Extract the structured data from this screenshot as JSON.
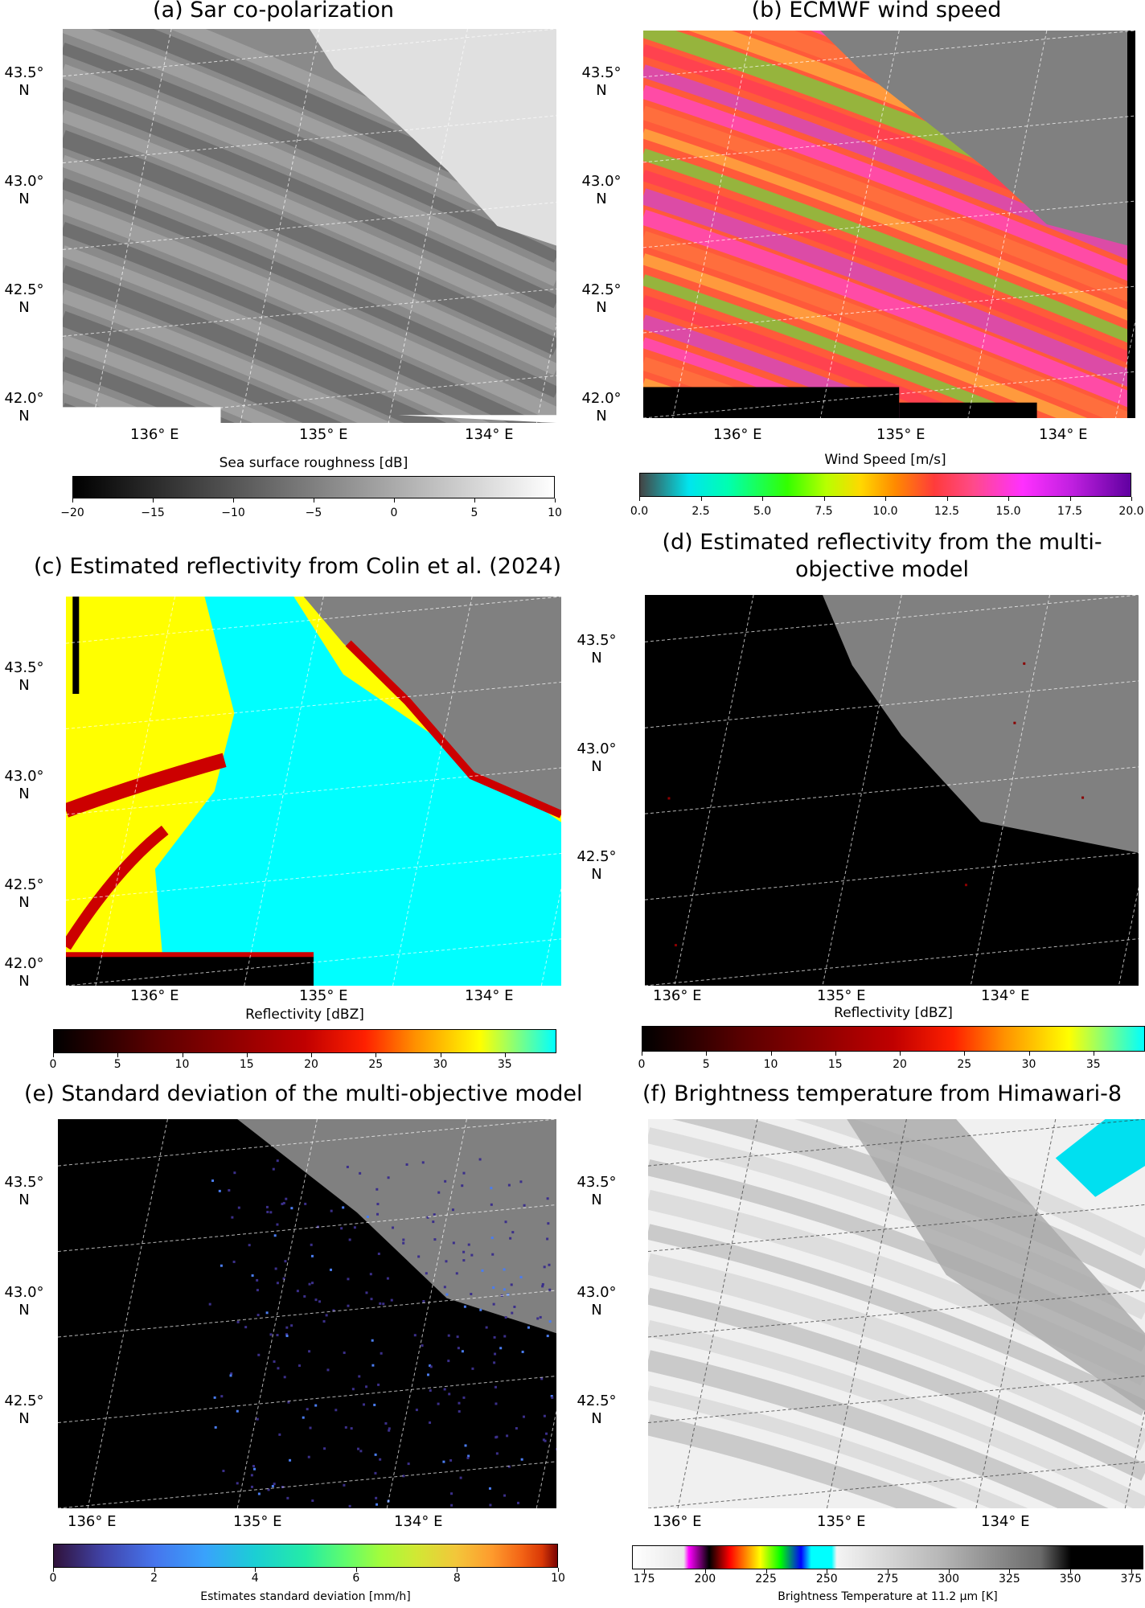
{
  "chart_data": [
    {
      "type": "heatmap",
      "title": "(a) Sar co-polarization",
      "lat_labels": [
        {
          "v": "43.5°",
          "u": "N"
        },
        {
          "v": "43.0°",
          "u": "N"
        },
        {
          "v": "42.5°",
          "u": "N"
        },
        {
          "v": "42.0°",
          "u": "N"
        }
      ],
      "lon_labels": [
        "136° E",
        "135° E",
        "134° E"
      ],
      "colorbar": {
        "label": "Sea surface roughness [dB]",
        "min": -20,
        "max": 10,
        "ticks": [
          "−20",
          "−15",
          "−10",
          "−5",
          "0",
          "5",
          "10"
        ],
        "colormap": "gray"
      }
    },
    {
      "type": "heatmap",
      "title": "(b) ECMWF wind speed",
      "lat_labels": [
        {
          "v": "43.5°",
          "u": "N"
        },
        {
          "v": "43.0°",
          "u": "N"
        },
        {
          "v": "42.5°",
          "u": "N"
        },
        {
          "v": "42.0°",
          "u": "N"
        }
      ],
      "lon_labels": [
        "136° E",
        "135° E",
        "134° E"
      ],
      "colorbar": {
        "label": "Wind Speed [m/s]",
        "min": 0,
        "max": 20,
        "ticks": [
          "0.0",
          "2.5",
          "5.0",
          "7.5",
          "10.0",
          "12.5",
          "15.0",
          "17.5",
          "20.0"
        ],
        "colormap": "wind"
      }
    },
    {
      "type": "heatmap",
      "title": "(c) Estimated reflectivity from Colin et al. (2024)",
      "lat_labels": [
        {
          "v": "43.5°",
          "u": "N"
        },
        {
          "v": "43.0°",
          "u": "N"
        },
        {
          "v": "42.5°",
          "u": "N"
        },
        {
          "v": "42.0°",
          "u": "N"
        }
      ],
      "lon_labels": [
        "136° E",
        "135° E",
        "134° E"
      ],
      "colorbar": {
        "label": "Reflectivity [dBZ]",
        "min": 0,
        "max": 39,
        "ticks": [
          "0",
          "5",
          "10",
          "15",
          "20",
          "25",
          "30",
          "35"
        ],
        "colormap": "refl"
      }
    },
    {
      "type": "heatmap",
      "title": "(d) Estimated reflectivity from the multi-objective model",
      "lat_labels": [
        {
          "v": "43.5°",
          "u": "N"
        },
        {
          "v": "43.0°",
          "u": "N"
        },
        {
          "v": "42.5°",
          "u": "N"
        }
      ],
      "lon_labels": [
        "136° E",
        "135° E",
        "134° E"
      ],
      "colorbar": {
        "label": "Reflectivity [dBZ]",
        "min": 0,
        "max": 39,
        "ticks": [
          "0",
          "5",
          "10",
          "15",
          "20",
          "25",
          "30",
          "35"
        ],
        "colormap": "refl"
      }
    },
    {
      "type": "heatmap",
      "title": "(e) Standard deviation of the multi-objective model",
      "lat_labels": [
        {
          "v": "43.5°",
          "u": "N"
        },
        {
          "v": "43.0°",
          "u": "N"
        },
        {
          "v": "42.5°",
          "u": "N"
        }
      ],
      "lon_labels": [
        "136° E",
        "135° E",
        "134° E"
      ],
      "colorbar": {
        "label": "Estimates standard deviation [mm/h]",
        "min": 0,
        "max": 10,
        "ticks": [
          "0",
          "2",
          "4",
          "6",
          "8",
          "10"
        ],
        "colormap": "turbo"
      }
    },
    {
      "type": "heatmap",
      "title": "(f) Brightness temperature from Himawari-8",
      "lat_labels": [
        {
          "v": "43.5°",
          "u": "N"
        },
        {
          "v": "43.0°",
          "u": "N"
        },
        {
          "v": "42.5°",
          "u": "N"
        }
      ],
      "lon_labels": [
        "136° E",
        "135° E",
        "134° E"
      ],
      "colorbar": {
        "label": "Brightness Temperature at 11.2 µm [K]",
        "min": 170,
        "max": 380,
        "ticks": [
          "175",
          "200",
          "225",
          "250",
          "275",
          "300",
          "325",
          "350",
          "375"
        ],
        "colormap": "bt"
      }
    }
  ]
}
